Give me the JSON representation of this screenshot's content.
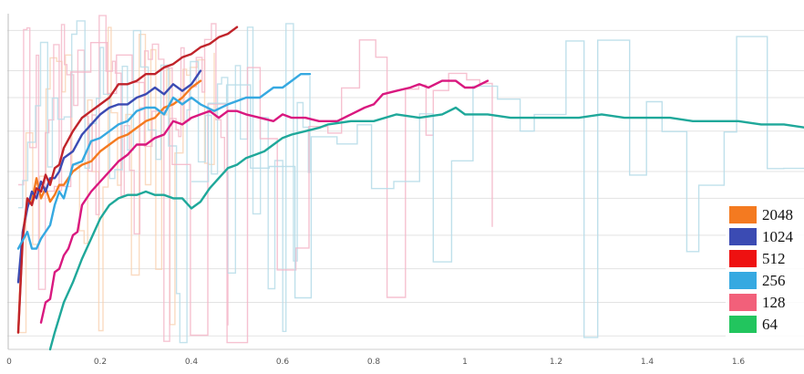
{
  "chart_data": {
    "type": "line",
    "title": "",
    "xlabel": "",
    "ylabel": "",
    "xlim": [
      0.0,
      1.75
    ],
    "ylim": [
      0.0,
      1.0
    ],
    "grid": true,
    "legend_position": "bottom-right",
    "x_ticks": [
      "0",
      "0.2",
      "0.4",
      "0.6",
      "0.8",
      "1",
      "1.2",
      "1.4",
      "1.6"
    ],
    "x_tick_values": [
      0,
      0.2,
      0.4,
      0.6,
      0.8,
      1.0,
      1.2,
      1.4,
      1.6
    ],
    "y_grid_values": [
      0.04,
      0.14,
      0.24,
      0.34,
      0.45,
      0.53,
      0.65,
      0.75,
      0.83,
      0.95
    ],
    "legend": [
      "2048",
      "1024",
      "512",
      "256",
      "128",
      "64"
    ],
    "series": [
      {
        "name": "2048",
        "color": "#f47a20",
        "x": [
          0.02,
          0.03,
          0.04,
          0.05,
          0.06,
          0.07,
          0.08,
          0.09,
          0.1,
          0.11,
          0.12,
          0.14,
          0.16,
          0.18,
          0.2,
          0.22,
          0.24,
          0.26,
          0.28,
          0.3,
          0.32,
          0.34,
          0.36,
          0.38,
          0.4,
          0.42
        ],
        "y": [
          0.05,
          0.35,
          0.43,
          0.44,
          0.51,
          0.45,
          0.48,
          0.44,
          0.46,
          0.49,
          0.49,
          0.53,
          0.55,
          0.56,
          0.59,
          0.61,
          0.63,
          0.64,
          0.66,
          0.68,
          0.69,
          0.72,
          0.73,
          0.75,
          0.78,
          0.8
        ]
      },
      {
        "name": "1024",
        "color": "#3b4bb3",
        "x": [
          0.02,
          0.03,
          0.04,
          0.05,
          0.06,
          0.07,
          0.08,
          0.09,
          0.1,
          0.11,
          0.12,
          0.14,
          0.16,
          0.18,
          0.2,
          0.22,
          0.24,
          0.26,
          0.28,
          0.3,
          0.32,
          0.34,
          0.36,
          0.38,
          0.4,
          0.42
        ],
        "y": [
          0.2,
          0.35,
          0.42,
          0.47,
          0.45,
          0.5,
          0.47,
          0.51,
          0.51,
          0.53,
          0.57,
          0.59,
          0.64,
          0.67,
          0.7,
          0.72,
          0.73,
          0.73,
          0.75,
          0.76,
          0.78,
          0.76,
          0.79,
          0.77,
          0.79,
          0.83
        ]
      },
      {
        "name": "512",
        "color": "#c0232a",
        "x": [
          0.02,
          0.03,
          0.04,
          0.05,
          0.06,
          0.07,
          0.08,
          0.09,
          0.1,
          0.11,
          0.12,
          0.14,
          0.16,
          0.18,
          0.2,
          0.22,
          0.24,
          0.26,
          0.28,
          0.3,
          0.32,
          0.34,
          0.36,
          0.38,
          0.4,
          0.42,
          0.44,
          0.46,
          0.48,
          0.5
        ],
        "y": [
          0.05,
          0.33,
          0.45,
          0.43,
          0.48,
          0.47,
          0.52,
          0.49,
          0.54,
          0.55,
          0.6,
          0.65,
          0.69,
          0.71,
          0.73,
          0.75,
          0.79,
          0.79,
          0.8,
          0.82,
          0.82,
          0.84,
          0.85,
          0.87,
          0.88,
          0.9,
          0.91,
          0.93,
          0.94,
          0.96
        ]
      },
      {
        "name": "256",
        "color": "#36a9e1",
        "x": [
          0.02,
          0.04,
          0.05,
          0.06,
          0.07,
          0.08,
          0.09,
          0.1,
          0.11,
          0.12,
          0.14,
          0.16,
          0.18,
          0.2,
          0.22,
          0.24,
          0.26,
          0.28,
          0.3,
          0.32,
          0.34,
          0.36,
          0.38,
          0.4,
          0.42,
          0.45,
          0.48,
          0.5,
          0.52,
          0.55,
          0.58,
          0.6,
          0.62,
          0.64,
          0.66
        ],
        "y": [
          0.3,
          0.35,
          0.3,
          0.3,
          0.33,
          0.35,
          0.37,
          0.43,
          0.47,
          0.45,
          0.55,
          0.56,
          0.62,
          0.63,
          0.65,
          0.67,
          0.68,
          0.71,
          0.72,
          0.72,
          0.7,
          0.75,
          0.73,
          0.75,
          0.73,
          0.71,
          0.73,
          0.74,
          0.75,
          0.75,
          0.78,
          0.78,
          0.8,
          0.82,
          0.82
        ]
      },
      {
        "name": "128",
        "color": "#d9187f",
        "x": [
          0.07,
          0.08,
          0.09,
          0.1,
          0.11,
          0.12,
          0.13,
          0.14,
          0.15,
          0.16,
          0.18,
          0.2,
          0.22,
          0.24,
          0.26,
          0.28,
          0.3,
          0.32,
          0.34,
          0.36,
          0.38,
          0.4,
          0.42,
          0.44,
          0.46,
          0.48,
          0.5,
          0.52,
          0.55,
          0.58,
          0.6,
          0.62,
          0.65,
          0.68,
          0.7,
          0.72,
          0.75,
          0.78,
          0.8,
          0.82,
          0.85,
          0.88,
          0.9,
          0.92,
          0.95,
          0.98,
          1.0,
          1.02,
          1.05
        ],
        "y": [
          0.08,
          0.14,
          0.15,
          0.23,
          0.24,
          0.28,
          0.3,
          0.34,
          0.35,
          0.43,
          0.47,
          0.5,
          0.53,
          0.56,
          0.58,
          0.61,
          0.61,
          0.63,
          0.64,
          0.68,
          0.67,
          0.69,
          0.7,
          0.71,
          0.69,
          0.71,
          0.71,
          0.7,
          0.69,
          0.68,
          0.7,
          0.69,
          0.69,
          0.68,
          0.68,
          0.68,
          0.7,
          0.72,
          0.73,
          0.76,
          0.77,
          0.78,
          0.79,
          0.78,
          0.8,
          0.8,
          0.78,
          0.78,
          0.8
        ]
      },
      {
        "name": "64",
        "color": "#1fa89a",
        "x": [
          0.09,
          0.1,
          0.12,
          0.14,
          0.16,
          0.18,
          0.2,
          0.22,
          0.24,
          0.26,
          0.28,
          0.3,
          0.32,
          0.34,
          0.36,
          0.38,
          0.4,
          0.42,
          0.44,
          0.46,
          0.48,
          0.5,
          0.52,
          0.54,
          0.56,
          0.58,
          0.6,
          0.62,
          0.65,
          0.68,
          0.7,
          0.75,
          0.8,
          0.85,
          0.9,
          0.95,
          0.98,
          1.0,
          1.05,
          1.1,
          1.15,
          1.2,
          1.25,
          1.3,
          1.35,
          1.4,
          1.45,
          1.5,
          1.55,
          1.6,
          1.65,
          1.7,
          1.75
        ],
        "y": [
          0.0,
          0.05,
          0.14,
          0.2,
          0.27,
          0.33,
          0.39,
          0.43,
          0.45,
          0.46,
          0.46,
          0.47,
          0.46,
          0.46,
          0.45,
          0.45,
          0.42,
          0.44,
          0.48,
          0.51,
          0.54,
          0.55,
          0.57,
          0.58,
          0.59,
          0.61,
          0.63,
          0.64,
          0.65,
          0.66,
          0.67,
          0.68,
          0.68,
          0.7,
          0.69,
          0.7,
          0.72,
          0.7,
          0.7,
          0.69,
          0.69,
          0.69,
          0.69,
          0.7,
          0.69,
          0.69,
          0.69,
          0.68,
          0.68,
          0.68,
          0.67,
          0.67,
          0.66
        ]
      }
    ]
  },
  "colors": {
    "noise_light_blue": "#b8dde9",
    "noise_light_pink": "#f4b6c8",
    "noise_light_orange": "#f8cfae",
    "grid": "#e3e3e3",
    "tick_text": "#555555"
  }
}
